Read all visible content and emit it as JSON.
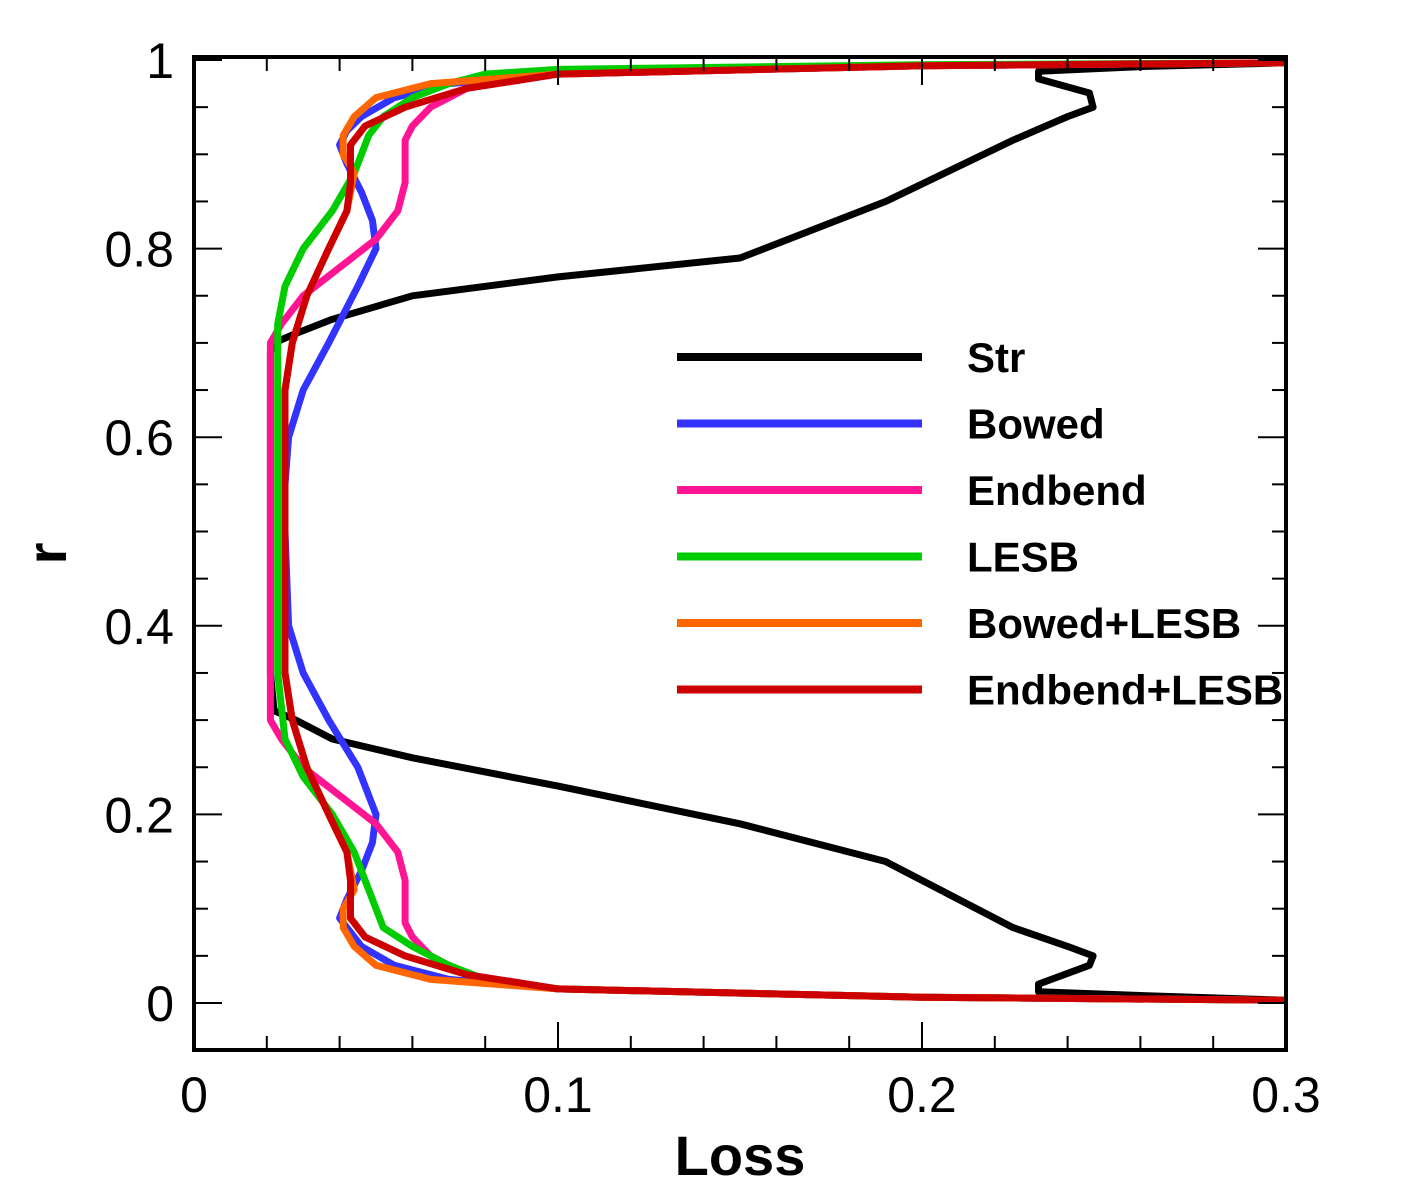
{
  "chart_data": {
    "type": "line",
    "title": "",
    "xlabel": "Loss",
    "ylabel": "r",
    "xlim": [
      0,
      0.3
    ],
    "ylim": [
      0,
      1
    ],
    "xticks": [
      0,
      0.1,
      0.2,
      0.3
    ],
    "xtick_labels": [
      "0",
      "0.1",
      "0.2",
      "0.3"
    ],
    "yticks": [
      0,
      0.2,
      0.4,
      0.6,
      0.8,
      1
    ],
    "ytick_labels": [
      "0",
      "0.2",
      "0.4",
      "0.6",
      "0.8",
      "1"
    ],
    "grid": false,
    "legend_position": "right-center",
    "series": [
      {
        "name": "Str",
        "color": "#000000",
        "x": [
          0.3,
          0.26,
          0.232,
          0.232,
          0.246,
          0.247,
          0.24,
          0.225,
          0.19,
          0.15,
          0.1,
          0.06,
          0.038,
          0.028,
          0.022,
          0.021,
          0.021,
          0.021,
          0.021,
          0.021,
          0.021,
          0.022,
          0.028,
          0.038,
          0.06,
          0.1,
          0.15,
          0.19,
          0.225,
          0.24,
          0.247,
          0.246,
          0.232,
          0.232,
          0.26,
          0.3
        ],
        "y": [
          0.003,
          0.008,
          0.012,
          0.02,
          0.04,
          0.05,
          0.06,
          0.08,
          0.15,
          0.19,
          0.23,
          0.26,
          0.28,
          0.3,
          0.31,
          0.35,
          0.4,
          0.5,
          0.6,
          0.65,
          0.69,
          0.7,
          0.71,
          0.725,
          0.75,
          0.77,
          0.79,
          0.85,
          0.915,
          0.94,
          0.95,
          0.965,
          0.98,
          0.988,
          0.993,
          0.997
        ]
      },
      {
        "name": "Bowed",
        "color": "#3333ff",
        "x": [
          0.3,
          0.2,
          0.1,
          0.07,
          0.055,
          0.046,
          0.042,
          0.04,
          0.042,
          0.046,
          0.049,
          0.05,
          0.045,
          0.037,
          0.03,
          0.026,
          0.025,
          0.025,
          0.026,
          0.03,
          0.037,
          0.045,
          0.05,
          0.049,
          0.046,
          0.042,
          0.04,
          0.042,
          0.046,
          0.055,
          0.07,
          0.1,
          0.2,
          0.3
        ],
        "y": [
          0.003,
          0.006,
          0.015,
          0.025,
          0.04,
          0.06,
          0.08,
          0.09,
          0.11,
          0.14,
          0.17,
          0.2,
          0.25,
          0.3,
          0.35,
          0.4,
          0.5,
          0.55,
          0.6,
          0.65,
          0.7,
          0.76,
          0.8,
          0.83,
          0.86,
          0.89,
          0.91,
          0.925,
          0.94,
          0.96,
          0.975,
          0.985,
          0.994,
          0.997
        ]
      },
      {
        "name": "Endbend",
        "color": "#ff1493",
        "x": [
          0.3,
          0.2,
          0.1,
          0.075,
          0.065,
          0.06,
          0.058,
          0.058,
          0.056,
          0.05,
          0.04,
          0.03,
          0.024,
          0.021,
          0.021,
          0.021,
          0.021,
          0.021,
          0.024,
          0.03,
          0.04,
          0.05,
          0.056,
          0.058,
          0.058,
          0.06,
          0.065,
          0.075,
          0.1,
          0.2,
          0.3
        ],
        "y": [
          0.003,
          0.006,
          0.015,
          0.03,
          0.05,
          0.07,
          0.085,
          0.13,
          0.16,
          0.19,
          0.22,
          0.25,
          0.28,
          0.3,
          0.4,
          0.5,
          0.6,
          0.7,
          0.72,
          0.75,
          0.78,
          0.81,
          0.84,
          0.87,
          0.915,
          0.93,
          0.95,
          0.97,
          0.985,
          0.994,
          0.997
        ]
      },
      {
        "name": "LESB",
        "color": "#00cc00",
        "x": [
          0.3,
          0.2,
          0.1,
          0.08,
          0.07,
          0.06,
          0.052,
          0.048,
          0.044,
          0.038,
          0.03,
          0.025,
          0.023,
          0.023,
          0.023,
          0.023,
          0.025,
          0.03,
          0.038,
          0.044,
          0.048,
          0.052,
          0.06,
          0.07,
          0.08,
          0.1,
          0.2,
          0.3
        ],
        "y": [
          0.003,
          0.006,
          0.015,
          0.025,
          0.04,
          0.06,
          0.08,
          0.12,
          0.16,
          0.2,
          0.24,
          0.28,
          0.35,
          0.5,
          0.65,
          0.72,
          0.76,
          0.8,
          0.84,
          0.88,
          0.92,
          0.94,
          0.96,
          0.975,
          0.985,
          0.99,
          0.995,
          0.997
        ]
      },
      {
        "name": "Bowed+LESB",
        "color": "#ff6600",
        "x": [
          0.3,
          0.2,
          0.1,
          0.065,
          0.05,
          0.044,
          0.041,
          0.041,
          0.044,
          0.042,
          0.037,
          0.031,
          0.027,
          0.025,
          0.025,
          0.025,
          0.027,
          0.031,
          0.037,
          0.042,
          0.044,
          0.041,
          0.041,
          0.044,
          0.05,
          0.065,
          0.1,
          0.2,
          0.3
        ],
        "y": [
          0.003,
          0.006,
          0.015,
          0.025,
          0.04,
          0.06,
          0.08,
          0.1,
          0.12,
          0.16,
          0.2,
          0.25,
          0.3,
          0.35,
          0.5,
          0.65,
          0.7,
          0.75,
          0.8,
          0.84,
          0.88,
          0.9,
          0.92,
          0.94,
          0.96,
          0.975,
          0.985,
          0.994,
          0.997
        ]
      },
      {
        "name": "Endbend+LESB",
        "color": "#cc0000",
        "x": [
          0.3,
          0.2,
          0.1,
          0.075,
          0.058,
          0.047,
          0.043,
          0.043,
          0.042,
          0.037,
          0.031,
          0.027,
          0.025,
          0.025,
          0.025,
          0.027,
          0.031,
          0.037,
          0.042,
          0.043,
          0.043,
          0.047,
          0.058,
          0.075,
          0.1,
          0.2,
          0.3
        ],
        "y": [
          0.003,
          0.006,
          0.015,
          0.03,
          0.05,
          0.07,
          0.09,
          0.13,
          0.16,
          0.2,
          0.25,
          0.3,
          0.35,
          0.5,
          0.65,
          0.7,
          0.75,
          0.8,
          0.84,
          0.87,
          0.91,
          0.93,
          0.95,
          0.97,
          0.985,
          0.994,
          0.997
        ]
      }
    ]
  }
}
